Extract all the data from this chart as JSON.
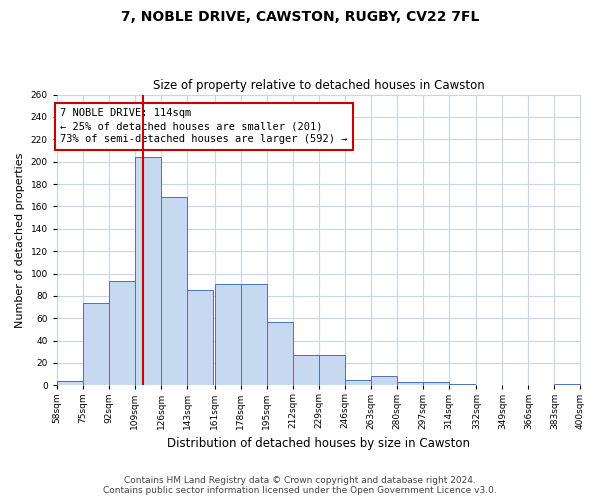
{
  "title": "7, NOBLE DRIVE, CAWSTON, RUGBY, CV22 7FL",
  "subtitle": "Size of property relative to detached houses in Cawston",
  "xlabel": "Distribution of detached houses by size in Cawston",
  "ylabel": "Number of detached properties",
  "footer_line1": "Contains HM Land Registry data © Crown copyright and database right 2024.",
  "footer_line2": "Contains public sector information licensed under the Open Government Licence v3.0.",
  "bin_edges": [
    58,
    75,
    92,
    109,
    126,
    143,
    161,
    178,
    195,
    212,
    229,
    246,
    263,
    280,
    297,
    314,
    332,
    349,
    366,
    383,
    400
  ],
  "bar_heights": [
    4,
    74,
    93,
    204,
    168,
    85,
    91,
    91,
    57,
    27,
    27,
    5,
    8,
    3,
    3,
    1,
    0,
    0,
    0,
    1
  ],
  "bar_color": "#c6d9f1",
  "bar_edge_color": "#4472c4",
  "property_size": 114,
  "vline_color": "#cc0000",
  "annotation_line1": "7 NOBLE DRIVE: 114sqm",
  "annotation_line2": "← 25% of detached houses are smaller (201)",
  "annotation_line3": "73% of semi-detached houses are larger (592) →",
  "annotation_box_color": "#cc0000",
  "ylim": [
    0,
    260
  ],
  "yticks": [
    0,
    20,
    40,
    60,
    80,
    100,
    120,
    140,
    160,
    180,
    200,
    220,
    240,
    260
  ],
  "tick_labels": [
    "58sqm",
    "75sqm",
    "92sqm",
    "109sqm",
    "126sqm",
    "143sqm",
    "161sqm",
    "178sqm",
    "195sqm",
    "212sqm",
    "229sqm",
    "246sqm",
    "263sqm",
    "280sqm",
    "297sqm",
    "314sqm",
    "332sqm",
    "349sqm",
    "366sqm",
    "383sqm",
    "400sqm"
  ],
  "bg_color": "#ffffff",
  "grid_color": "#c8d4e8",
  "title_fontsize": 10,
  "subtitle_fontsize": 8.5,
  "ylabel_fontsize": 8,
  "xlabel_fontsize": 8.5,
  "footer_fontsize": 6.5,
  "tick_fontsize": 6.5,
  "annotation_fontsize": 7.5
}
